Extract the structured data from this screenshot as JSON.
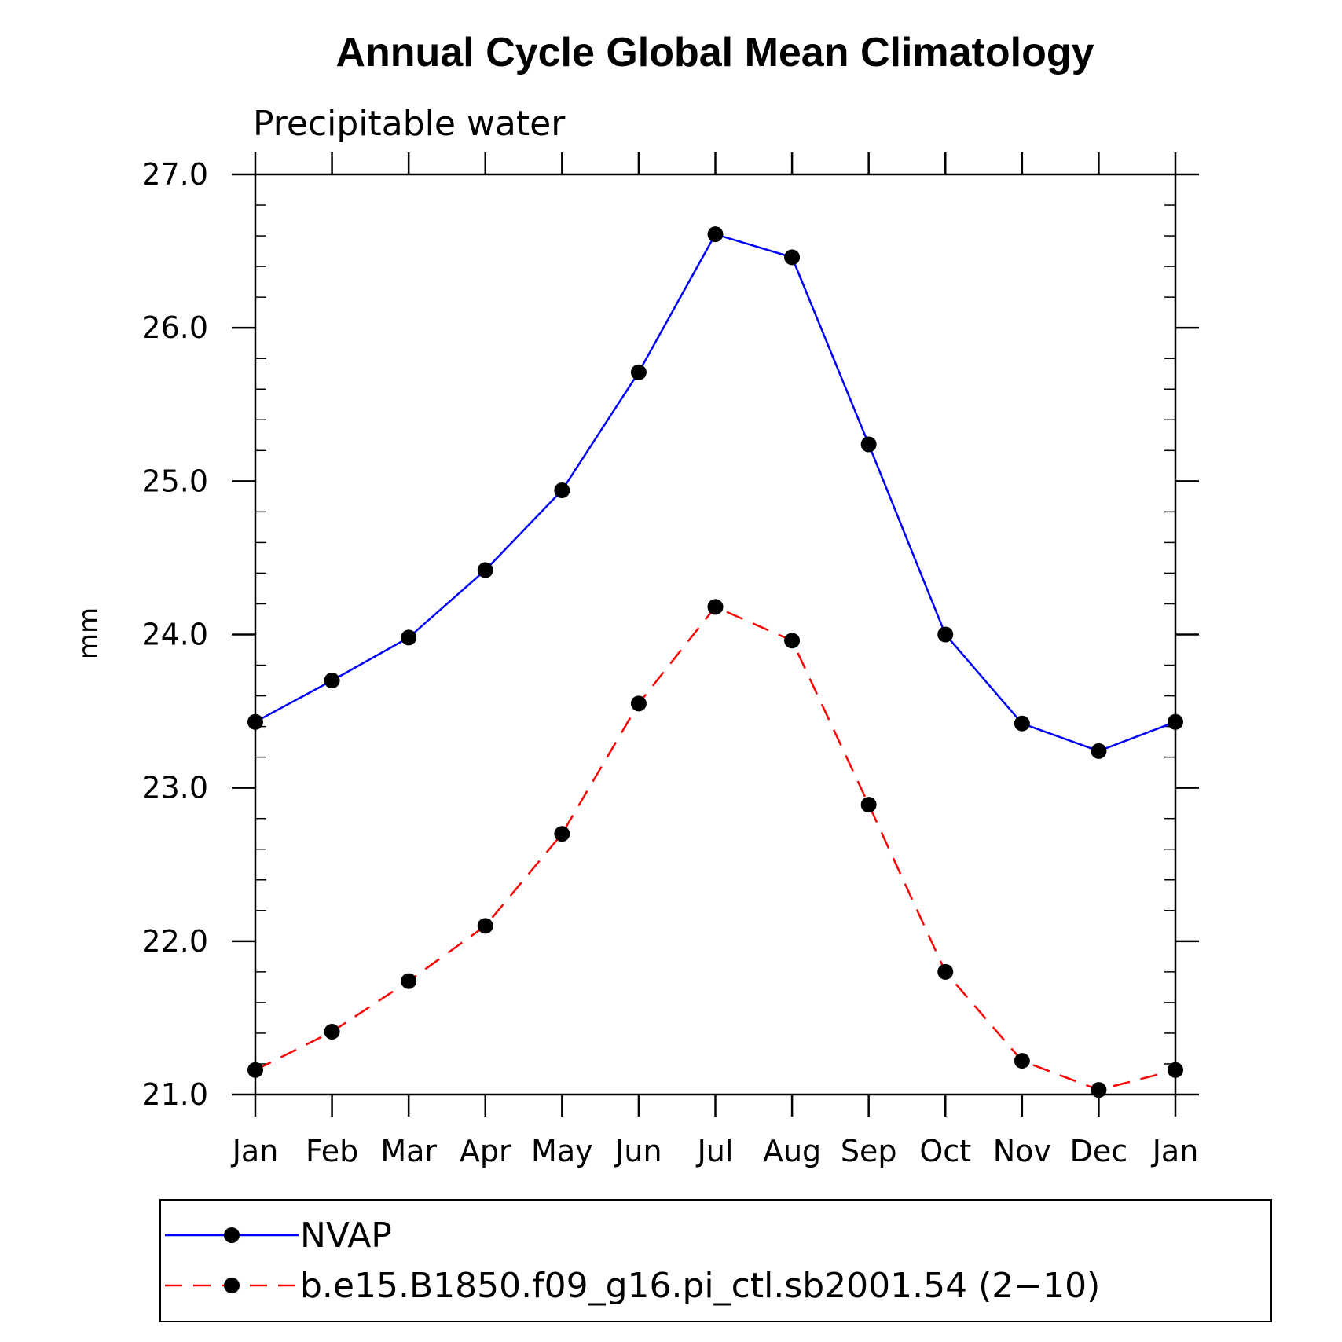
{
  "chart_data": {
    "type": "line",
    "title": "Annual Cycle Global Mean Climatology",
    "subtitle": "Precipitable water",
    "xlabel": "",
    "ylabel": "mm",
    "categories": [
      "Jan",
      "Feb",
      "Mar",
      "Apr",
      "May",
      "Jun",
      "Jul",
      "Aug",
      "Sep",
      "Oct",
      "Nov",
      "Dec",
      "Jan"
    ],
    "ylim": [
      21.0,
      27.0
    ],
    "yticks": [
      "21.0",
      "22.0",
      "23.0",
      "24.0",
      "25.0",
      "26.0",
      "27.0"
    ],
    "grid": false,
    "legend_placement": "bottom",
    "series": [
      {
        "name": "NVAP",
        "color": "#0000ff",
        "line_style": "solid",
        "marker": "filled-circle",
        "marker_color": "#000000",
        "values": [
          23.43,
          23.7,
          23.98,
          24.42,
          24.94,
          25.71,
          26.61,
          26.46,
          25.24,
          24.0,
          23.42,
          23.24,
          23.43
        ]
      },
      {
        "name": "b.e15.B1850.f09_g16.pi_ctl.sb2001.54 (2−10)",
        "color": "#ff0000",
        "line_style": "dashed",
        "marker": "filled-circle",
        "marker_color": "#000000",
        "values": [
          21.16,
          21.41,
          21.74,
          22.1,
          22.7,
          23.55,
          24.18,
          23.96,
          22.89,
          21.8,
          21.22,
          21.03,
          21.16
        ]
      }
    ]
  }
}
